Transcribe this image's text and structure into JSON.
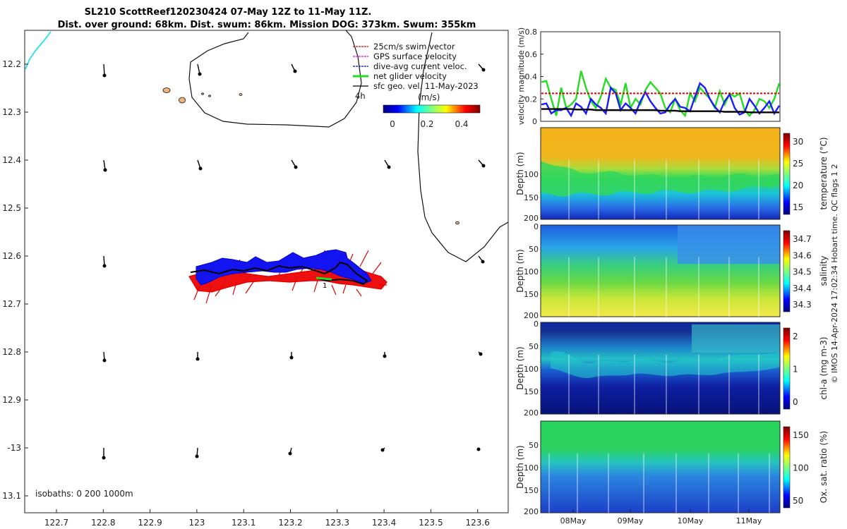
{
  "title_line1": "SL210 ScottReef120230424 07-May 12Z to 11-May 11Z.",
  "title_line2": "Dist. over ground: 68km. Dist. swum: 86km. Mission DOG: 373km. Swum: 355km",
  "credit": "© IMOS 14-Apr-2024 17:02:34 Hobart time. QC flags 1  2",
  "map": {
    "legend": [
      {
        "label": "25cm/s swim vector",
        "color": "#e00000"
      },
      {
        "label": "GPS surface velocity",
        "color": "#e000e0"
      },
      {
        "label": "dive-avg current veloc.",
        "color": "#0000ff"
      },
      {
        "label": "net glider velocity",
        "color": "#22dd22"
      },
      {
        "label": "sfc geo. vel. 11-May-2023",
        "color": "#000000"
      }
    ],
    "fourh_label": "4h",
    "colorbar_unit": "(m/s)",
    "colorbar_ticks": [
      "0",
      "0.2",
      "0.4"
    ],
    "isobaths_label": "isobaths: 0   200  1000m",
    "lon_ticks": [
      "122.7",
      "122.8",
      "122.9",
      "123",
      "123.1",
      "123.2",
      "123.3",
      "123.4",
      "123.5",
      "123.6"
    ],
    "lat_ticks": [
      "12.2",
      "12.3",
      "12.4",
      "12.5",
      "12.6",
      "12.7",
      "12.8",
      "12.9",
      "-13",
      "13.1"
    ]
  },
  "chart_data": [
    {
      "type": "line",
      "ylabel": "velocity magnitude (m/s)",
      "ylim": [
        0,
        0.8
      ],
      "yticks": [
        "0",
        "0.2",
        "0.4",
        "0.6",
        "0.8"
      ],
      "x": [
        0,
        1,
        2,
        3,
        4,
        5,
        6,
        7,
        8,
        9,
        10,
        11,
        12,
        13,
        14,
        15,
        16,
        17,
        18,
        19,
        20,
        21,
        22,
        23,
        24,
        25,
        26,
        27,
        28,
        29,
        30,
        31,
        32,
        33,
        34,
        35,
        36,
        37,
        38,
        39,
        40,
        41,
        42,
        43,
        44,
        45,
        46,
        47,
        48
      ],
      "series": [
        {
          "color": "#22dd22",
          "values": [
            0.35,
            0.36,
            0.2,
            0.05,
            0.3,
            0.12,
            0.15,
            0.2,
            0.45,
            0.3,
            0.18,
            0.12,
            0.22,
            0.38,
            0.3,
            0.28,
            0.15,
            0.34,
            0.12,
            0.2,
            0.15,
            0.28,
            0.35,
            0.3,
            0.25,
            0.12,
            0.08,
            0.2,
            0.1,
            0.05,
            0.25,
            0.18,
            0.3,
            0.25,
            0.2,
            0.12,
            0.27,
            0.15,
            0.25,
            0.22,
            0.25,
            0.1,
            0.05,
            0.1,
            0.2,
            0.18,
            0.12,
            0.2,
            0.34
          ]
        },
        {
          "color": "#1a1aff",
          "values": [
            0.15,
            0.16,
            0.07,
            0.1,
            0.1,
            0.12,
            0.05,
            0.16,
            0.13,
            0.07,
            0.2,
            0.15,
            0.12,
            0.07,
            0.3,
            0.25,
            0.1,
            0.16,
            0.12,
            0.07,
            0.18,
            0.26,
            0.18,
            0.12,
            0.07,
            0.08,
            0.15,
            0.2,
            0.13,
            0.12,
            0.09,
            0.22,
            0.34,
            0.3,
            0.2,
            0.13,
            0.08,
            0.18,
            0.24,
            0.12,
            0.06,
            0.08,
            0.2,
            0.14,
            0.07,
            0.12,
            0.18,
            0.07,
            0.14
          ]
        },
        {
          "color": "#000000",
          "values": [
            0.11,
            0.11,
            0.11,
            0.11,
            0.11,
            0.11,
            0.11,
            0.105,
            0.105,
            0.105,
            0.105,
            0.1,
            0.1,
            0.1,
            0.1,
            0.1,
            0.1,
            0.1,
            0.1,
            0.1,
            0.1,
            0.1,
            0.1,
            0.1,
            0.095,
            0.095,
            0.095,
            0.095,
            0.09,
            0.09,
            0.09,
            0.09,
            0.09,
            0.09,
            0.09,
            0.09,
            0.09,
            0.085,
            0.085,
            0.085,
            0.085,
            0.085,
            0.08,
            0.08,
            0.08,
            0.08,
            0.08,
            0.08,
            0.08
          ]
        },
        {
          "color": "#e00000",
          "values": [
            0.25,
            0.25,
            0.25,
            0.25,
            0.25,
            0.25,
            0.25,
            0.25,
            0.25,
            0.25,
            0.25,
            0.25,
            0.25,
            0.25,
            0.25,
            0.25,
            0.25,
            0.25,
            0.25,
            0.25,
            0.25,
            0.25,
            0.25,
            0.25,
            0.25,
            0.25,
            0.25,
            0.25,
            0.25,
            0.25,
            0.25,
            0.25,
            0.25,
            0.25,
            0.25,
            0.25,
            0.25,
            0.25,
            0.25,
            0.25,
            0.25,
            0.25,
            0.25,
            0.25,
            0.25,
            0.25,
            0.25,
            0.25,
            0.25
          ]
        }
      ]
    },
    {
      "type": "heatmap",
      "variable": "temperature",
      "ylabel": "Depth (m)",
      "cbar_label": "temperature (°C)",
      "cbar_ticks": [
        "30",
        "25",
        "20",
        "15"
      ],
      "yticks": [
        "100",
        "150",
        "200"
      ]
    },
    {
      "type": "heatmap",
      "variable": "salinity",
      "ylabel": "Depth (m)",
      "cbar_label": "salinity",
      "cbar_ticks": [
        "34.7",
        "34.6",
        "34.5",
        "34.4",
        "34.3"
      ],
      "yticks": [
        "0",
        "50",
        "100",
        "150",
        "200"
      ]
    },
    {
      "type": "heatmap",
      "variable": "chl-a",
      "ylabel": "Depth (m)",
      "cbar_label": "chl-a (mg m-3)",
      "cbar_ticks": [
        "2",
        "1",
        "0"
      ],
      "yticks": [
        "0",
        "50",
        "100",
        "150",
        "200"
      ]
    },
    {
      "type": "heatmap",
      "variable": "oxygen saturation",
      "ylabel": "Depth (m)",
      "cbar_label": "Ox. sat. ratio (%)",
      "cbar_ticks": [
        "150",
        "100",
        "50"
      ],
      "yticks": [
        "50",
        "100",
        "150",
        "200"
      ],
      "xticks": [
        "08May",
        "09May",
        "10May",
        "11May"
      ]
    }
  ]
}
